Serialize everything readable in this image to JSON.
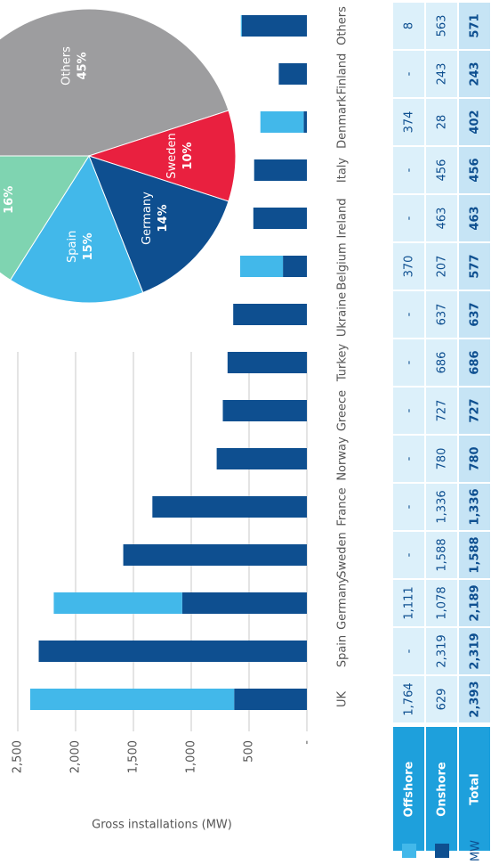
{
  "chart_data": [
    {
      "type": "bar",
      "stacked": true,
      "y_label": "Gross installations (MW)",
      "categories": [
        "UK",
        "Spain",
        "Germany",
        "Sweden",
        "France",
        "Norway",
        "Greece",
        "Turkey",
        "Ukraine",
        "Belgium",
        "Ireland",
        "Italy",
        "Denmark",
        "Finland",
        "Others"
      ],
      "series": [
        {
          "name": "Offshore",
          "color": "#42b8ea",
          "values": [
            1764,
            null,
            1111,
            null,
            null,
            null,
            null,
            null,
            null,
            370,
            null,
            null,
            374,
            null,
            8
          ],
          "value_labels": [
            "1,764",
            "-",
            "1,111",
            "-",
            "-",
            "-",
            "-",
            "-",
            "-",
            "370",
            "-",
            "-",
            "374",
            "-",
            "8"
          ]
        },
        {
          "name": "Onshore",
          "color": "#0e4f90",
          "values": [
            629,
            2319,
            1078,
            1588,
            1336,
            780,
            727,
            686,
            637,
            207,
            463,
            456,
            28,
            243,
            563
          ],
          "value_labels": [
            "629",
            "2,319",
            "1,078",
            "1,588",
            "1,336",
            "780",
            "727",
            "686",
            "637",
            "207",
            "463",
            "456",
            "28",
            "243",
            "563"
          ]
        }
      ],
      "total": {
        "name": "Total",
        "values": [
          2393,
          2319,
          2189,
          1588,
          1336,
          780,
          727,
          686,
          637,
          577,
          463,
          456,
          402,
          243,
          571
        ],
        "value_labels": [
          "2,393",
          "2,319",
          "2,189",
          "1,588",
          "1,336",
          "780",
          "727",
          "686",
          "637",
          "577",
          "463",
          "456",
          "402",
          "243",
          "571"
        ]
      },
      "ylim": [
        0,
        2500
      ],
      "yticks": [
        {
          "value": 0,
          "label": "-"
        },
        500,
        {
          "value": 1000,
          "label": "1,000"
        },
        {
          "value": 1500,
          "label": "1,500"
        },
        {
          "value": 2000,
          "label": "2,000"
        },
        {
          "value": 2500,
          "label": "2,500"
        }
      ],
      "grid": true,
      "legend_label": "MW"
    },
    {
      "type": "pie",
      "categories": [
        "Others",
        "Sweden",
        "Germany",
        "Spain",
        null
      ],
      "values": [
        45,
        10,
        14,
        15,
        16
      ],
      "value_labels": [
        "45%",
        "10%",
        "14%",
        "15%",
        "16%"
      ],
      "colors": [
        "#9d9d9f",
        "#e9203f",
        "#0e4f90",
        "#42b8ea",
        "#7fd4b1"
      ]
    }
  ]
}
